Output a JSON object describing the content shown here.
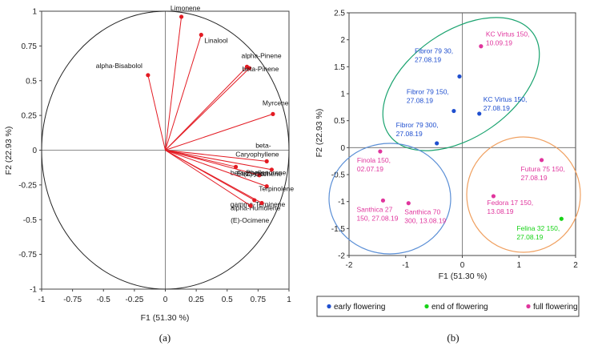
{
  "chart_data": [
    {
      "type": "scatter",
      "subtype": "correlation-circle",
      "caption": "(a)",
      "xlabel": "F1 (51.30 %)",
      "ylabel": "F2 (22.93 %)",
      "xlim": [
        -1,
        1
      ],
      "ylim": [
        -1,
        1
      ],
      "xticks": [
        "-1",
        "-0.75",
        "-0.5",
        "-0.25",
        "0",
        "0.25",
        "0.5",
        "0.75",
        "1"
      ],
      "yticks": [
        "-1",
        "-0.75",
        "-0.5",
        "-0.25",
        "0",
        "0.25",
        "0.5",
        "0.75",
        "1"
      ],
      "colors": {
        "vector": "#e31b23",
        "circle": "#222222"
      },
      "variables": [
        {
          "name": "Limonene",
          "x": 0.13,
          "y": 0.96
        },
        {
          "name": "Linalool",
          "x": 0.29,
          "y": 0.83
        },
        {
          "name": "alpha-Pinene",
          "x": 0.66,
          "y": 0.6
        },
        {
          "name": "beta-Pinene",
          "x": 0.68,
          "y": 0.59
        },
        {
          "name": "alpha-Bisabolol",
          "x": -0.14,
          "y": 0.54
        },
        {
          "name": "Myrcene",
          "x": 0.87,
          "y": 0.26
        },
        {
          "name": "beta-",
          "x": 0.82,
          "y": -0.08
        },
        {
          "name": "Caryophyllene",
          "x": 0.82,
          "y": -0.08
        },
        {
          "name": "Eucalyptol",
          "x": 0.57,
          "y": -0.12
        },
        {
          "name": "beta-Phellandrene",
          "x": 0.76,
          "y": -0.18
        },
        {
          "name": "(Z)-Ocimene",
          "x": 0.86,
          "y": -0.14
        },
        {
          "name": "Terpinolene",
          "x": 0.82,
          "y": -0.26
        },
        {
          "name": "gamma-Terpinene",
          "x": 0.72,
          "y": -0.36
        },
        {
          "name": "alpha-Humulene",
          "x": 0.78,
          "y": -0.38
        },
        {
          "name": "(E)-Ocimene",
          "x": 0.69,
          "y": -0.4
        }
      ]
    },
    {
      "type": "scatter",
      "caption": "(b)",
      "xlabel": "F1 (51.30 %)",
      "ylabel": "F2 (22.93 %)",
      "xlim": [
        -2,
        2
      ],
      "ylim": [
        -2,
        2.5
      ],
      "xticks": [
        "-2",
        "-1",
        "0",
        "1",
        "2"
      ],
      "yticks": [
        "-2",
        "-1.5",
        "-1",
        "-0.5",
        "0",
        "0.5",
        "1",
        "1.5",
        "2",
        "2.5"
      ],
      "legend": [
        {
          "label": "early flowering",
          "color": "#1f4fcf"
        },
        {
          "label": "end of flowering",
          "color": "#17d317"
        },
        {
          "label": "full flowering",
          "color": "#e0359d"
        }
      ],
      "points": [
        {
          "label": [
            "KC Virtus 150,",
            "10.09.19"
          ],
          "x": 0.33,
          "y": 1.88,
          "group": "full flowering"
        },
        {
          "label": [
            "Fibror 79 30,",
            "27.08.19"
          ],
          "x": -0.05,
          "y": 1.32,
          "group": "early flowering"
        },
        {
          "label": [
            "Fibror 79 150,",
            "27.08.19"
          ],
          "x": -0.15,
          "y": 0.68,
          "group": "early flowering"
        },
        {
          "label": [
            "KC Virtus 150,",
            "27.08.19"
          ],
          "x": 0.3,
          "y": 0.63,
          "group": "early flowering"
        },
        {
          "label": [
            "Fibror 79 300,",
            "27.08.19"
          ],
          "x": -0.45,
          "y": 0.08,
          "group": "early flowering"
        },
        {
          "label": [
            "Finola 150,",
            "02.07.19"
          ],
          "x": -1.45,
          "y": -0.07,
          "group": "full flowering"
        },
        {
          "label": [
            "Futura 75 150,",
            "27.08.19"
          ],
          "x": 1.4,
          "y": -0.23,
          "group": "full flowering"
        },
        {
          "label": [
            "Fedora 17 150,",
            "13.08.19"
          ],
          "x": 0.55,
          "y": -0.9,
          "group": "full flowering"
        },
        {
          "label": [
            "Santhica 27",
            "150, 27.08.19"
          ],
          "x": -1.4,
          "y": -0.98,
          "group": "full flowering"
        },
        {
          "label": [
            "Santhica 70",
            "300, 13.08.19"
          ],
          "x": -0.95,
          "y": -1.03,
          "group": "full flowering"
        },
        {
          "label": [
            "Felina 32 150,",
            "27.08.19"
          ],
          "x": 1.75,
          "y": -1.32,
          "group": "end of flowering"
        }
      ]
    }
  ]
}
